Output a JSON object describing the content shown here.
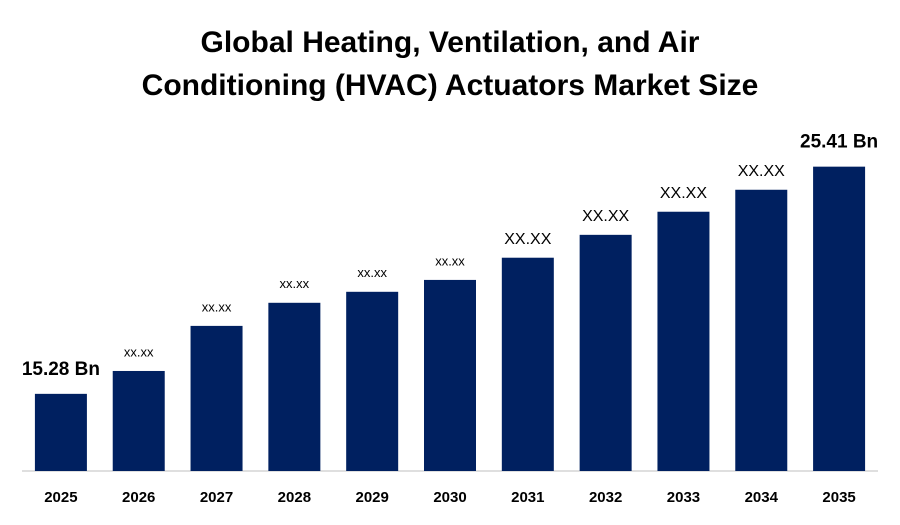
{
  "chart_data": {
    "type": "bar",
    "title": [
      "Global Heating, Ventilation, and Air",
      "Conditioning (HVAC) Actuators Market Size"
    ],
    "categories": [
      "2025",
      "2026",
      "2027",
      "2028",
      "2029",
      "2030",
      "2031",
      "2032",
      "2033",
      "2034",
      "2035"
    ],
    "values": [
      15.28,
      16.3,
      18.31,
      19.34,
      19.83,
      20.36,
      21.35,
      22.37,
      23.4,
      24.38,
      25.41
    ],
    "value_labels": [
      "15.28 Bn",
      "xx.xx",
      "xx.xx",
      "xx.xx",
      "xx.xx",
      "xx.xx",
      "XX.XX",
      "XX.XX",
      "XX.XX",
      "XX.XX",
      "25.41 Bn"
    ],
    "color": "#002060",
    "ylim": [
      11.84,
      27
    ]
  }
}
